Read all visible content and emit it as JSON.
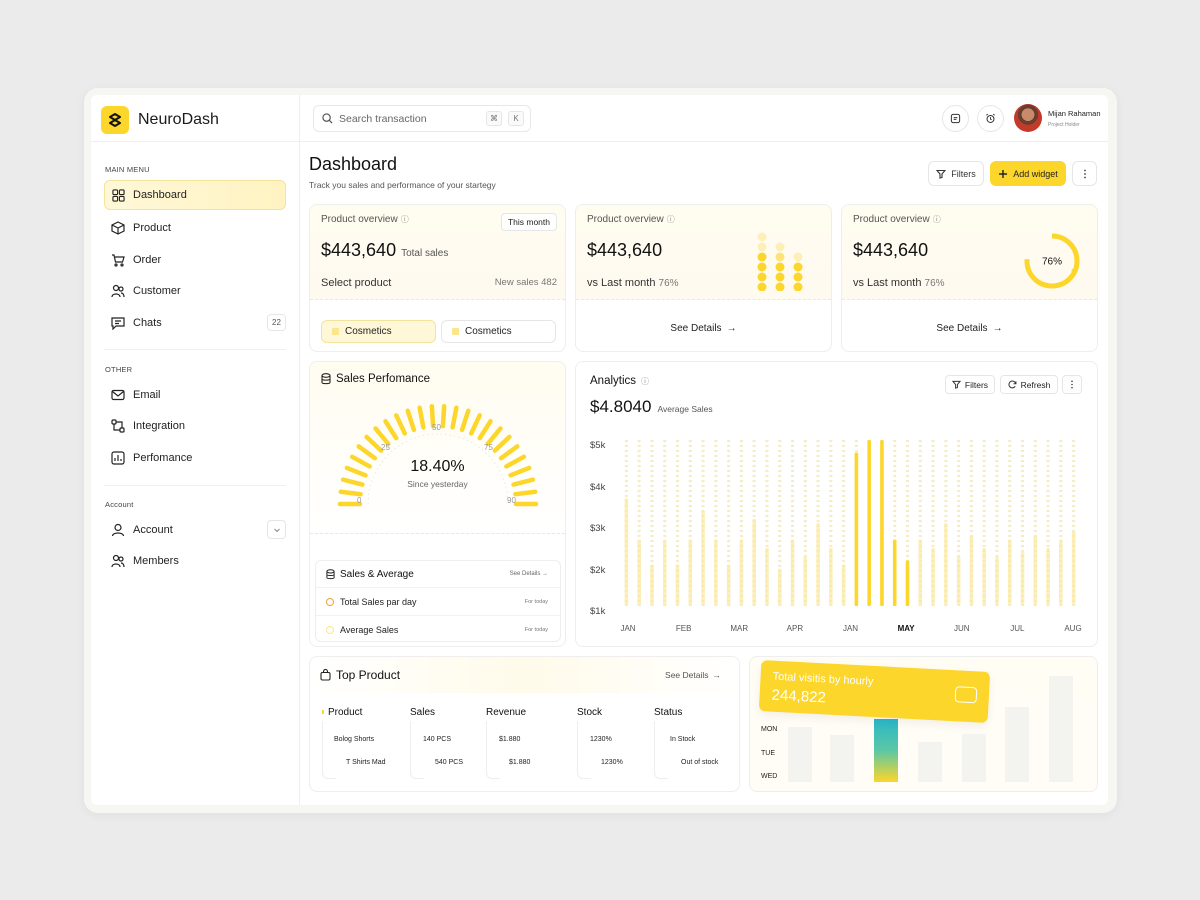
{
  "brand": {
    "name": "NeuroDash"
  },
  "sidebar": {
    "main_menu_label": "MAIN MENU",
    "main_items": [
      {
        "label": "Dashboard",
        "icon": "grid-icon",
        "active": true
      },
      {
        "label": "Product",
        "icon": "box-icon"
      },
      {
        "label": "Order",
        "icon": "cart-icon"
      },
      {
        "label": "Customer",
        "icon": "users-icon"
      },
      {
        "label": "Chats",
        "icon": "chat-icon",
        "badge": "22"
      }
    ],
    "other_label": "OTHER",
    "other_items": [
      {
        "label": "Email",
        "icon": "mail-icon"
      },
      {
        "label": "Integration",
        "icon": "integration-icon"
      },
      {
        "label": "Perfomance",
        "icon": "performance-icon"
      }
    ],
    "account_label": "Account",
    "account_items": [
      {
        "label": "Account",
        "icon": "user-icon"
      },
      {
        "label": "Members",
        "icon": "members-icon"
      }
    ]
  },
  "topbar": {
    "search_placeholder": "Search transaction",
    "shortcut_cmd": "⌘",
    "shortcut_key": "K",
    "user_name": "Mijan Rahaman",
    "user_role": "Project Holder"
  },
  "header": {
    "title": "Dashboard",
    "subtitle": "Track you sales and performance of your startegy",
    "filters_label": "Filters",
    "add_widget_label": "Add widget"
  },
  "overview": [
    {
      "label": "Product overview",
      "amount": "$443,640",
      "amount_note": "Total sales",
      "period": "This month",
      "line": "Select product",
      "right": "New sales 482",
      "chips": [
        "Cosmetics",
        "Cosmetics"
      ]
    },
    {
      "label": "Product overview",
      "amount": "$443,640",
      "line": "vs Last month",
      "pct": "76%",
      "see_details": "See Details"
    },
    {
      "label": "Product overview",
      "amount": "$443,640",
      "line": "vs Last month",
      "pct": "76%",
      "ring_label": "76%",
      "ring_fraction": 0.76,
      "see_details": "See Details"
    }
  ],
  "sales_performance": {
    "title": "Sales Perfomance",
    "value": "18.40%",
    "note": "Since yesterday",
    "ticks": [
      "0",
      "25",
      "50",
      "75",
      "90"
    ],
    "sub_title": "Sales & Average",
    "sub_link": "See Details",
    "rows": [
      {
        "label": "Total Sales par day",
        "note": "For today"
      },
      {
        "label": "Average Sales",
        "note": "For today"
      }
    ]
  },
  "analytics": {
    "title": "Analytics",
    "amount": "$4.8040",
    "amount_note": "Average Sales",
    "filters_label": "Filters",
    "refresh_label": "Refresh",
    "accent": "#fcd62a"
  },
  "chart_data": {
    "type": "bar",
    "categories": [
      "JAN",
      "FEB",
      "MAR",
      "APR",
      "JAN",
      "MAY",
      "JUN",
      "JUL",
      "AUG"
    ],
    "highlight": "MAY",
    "yticks": [
      "$5k",
      "$4k",
      "$3k",
      "$2k",
      "$1k"
    ],
    "ylim": [
      1,
      5
    ],
    "bars": [
      3.6,
      2.6,
      2.0,
      2.6,
      2.0,
      2.6,
      3.3,
      2.6,
      2.0,
      2.6,
      3.1,
      2.4,
      1.9,
      2.6,
      2.2,
      3.0,
      2.4,
      2.0,
      4.7,
      5.2,
      5.4,
      2.6,
      2.1,
      2.6,
      2.4,
      3.0,
      2.2,
      2.7,
      2.4,
      2.2,
      2.6,
      2.3,
      2.7,
      2.4,
      2.6,
      2.8
    ],
    "highlight_bars": [
      18,
      19,
      20,
      21,
      22
    ]
  },
  "top_product": {
    "title": "Top Product",
    "link": "See Details",
    "columns": [
      "Product",
      "Sales",
      "Revenue",
      "Stock",
      "Status"
    ],
    "rows": [
      [
        "Bolog Shorts",
        "140 PCS",
        "$1.880",
        "1230%",
        "In Stock"
      ],
      [
        "T Shirts Mad",
        "540 PCS",
        "$1.880",
        "1230%",
        "Out of stock"
      ]
    ]
  },
  "visits": {
    "label": "Total visitis by hourly",
    "value": "244,822",
    "days": [
      "MON",
      "TUE",
      "WED"
    ]
  }
}
